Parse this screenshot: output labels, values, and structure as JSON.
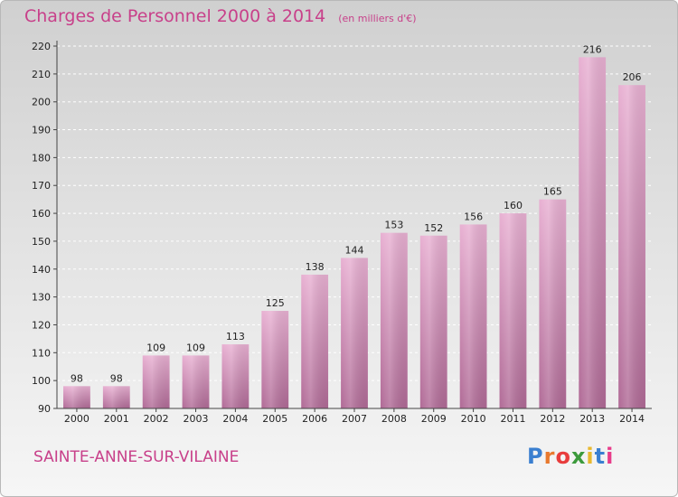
{
  "title": "Charges de Personnel 2000 à 2014",
  "unit": "(en milliers d'€)",
  "commune": "SAINTE-ANNE-SUR-VILAINE",
  "logo": {
    "text": "Proxiti",
    "colors": [
      "#3a7fd0",
      "#e8792e",
      "#e83c3c",
      "#3c9a3c",
      "#e8b82e",
      "#3a7fd0",
      "#e83c8a"
    ]
  },
  "chart_data": {
    "type": "bar",
    "title": "Charges de Personnel 2000 à 2014",
    "subtitle": "(en milliers d'€)",
    "categories": [
      "2000",
      "2001",
      "2002",
      "2003",
      "2004",
      "2005",
      "2006",
      "2007",
      "2008",
      "2009",
      "2010",
      "2011",
      "2012",
      "2013",
      "2014"
    ],
    "values": [
      98,
      98,
      109,
      109,
      113,
      125,
      138,
      144,
      153,
      152,
      156,
      160,
      165,
      216,
      206
    ],
    "ylim": [
      90,
      220
    ],
    "yticks": [
      90,
      100,
      110,
      120,
      130,
      140,
      150,
      160,
      170,
      180,
      190,
      200,
      210,
      220
    ],
    "grid": true,
    "bar_color": "#d88cb8"
  }
}
